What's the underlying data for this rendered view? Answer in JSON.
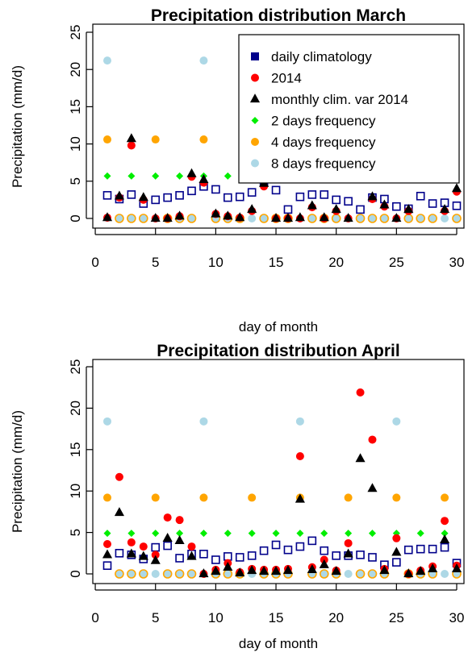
{
  "chart_data": [
    {
      "type": "scatter",
      "title": "Precipitation distribution March",
      "xlabel": "day of month",
      "ylabel": "Precipitation (mm/d)",
      "xlim": [
        1,
        30
      ],
      "ylim": [
        0,
        25
      ],
      "xticks": [
        0,
        5,
        10,
        15,
        20,
        25,
        30
      ],
      "yticks": [
        0,
        5,
        10,
        15,
        20,
        25
      ],
      "grid": false,
      "legend_position": "top-right",
      "series": [
        {
          "name": "daily climatology",
          "marker": "square",
          "color": "#00008b",
          "x": [
            1,
            2,
            3,
            4,
            5,
            6,
            7,
            8,
            9,
            10,
            11,
            12,
            13,
            14,
            15,
            16,
            17,
            18,
            19,
            20,
            21,
            22,
            23,
            24,
            25,
            26,
            27,
            28,
            29,
            30
          ],
          "y": [
            3.1,
            2.6,
            3.2,
            2.0,
            2.5,
            2.8,
            3.1,
            3.7,
            4.3,
            3.9,
            2.8,
            2.9,
            3.5,
            4.8,
            3.8,
            1.2,
            2.9,
            3.2,
            3.2,
            2.5,
            2.3,
            1.2,
            2.8,
            2.6,
            1.6,
            1.3,
            3.0,
            2.0,
            2.1,
            1.7
          ]
        },
        {
          "name": "2014",
          "marker": "circle",
          "color": "#ff0000",
          "x": [
            1,
            2,
            3,
            4,
            5,
            6,
            7,
            8,
            9,
            10,
            11,
            12,
            13,
            14,
            15,
            16,
            17,
            18,
            19,
            20,
            21,
            22,
            23,
            24,
            25,
            26,
            27,
            28,
            29,
            30
          ],
          "y": [
            0.1,
            2.8,
            9.8,
            2.5,
            0.0,
            0.0,
            0.3,
            5.6,
            4.8,
            0.6,
            0.3,
            0.1,
            1.0,
            4.3,
            0.0,
            0.0,
            0.0,
            1.5,
            0.0,
            1.0,
            0.0,
            6.2,
            2.6,
            1.6,
            0.0,
            1.0,
            5.3,
            6.6,
            1.0,
            3.6
          ]
        },
        {
          "name": "monthly clim. var 2014",
          "marker": "triangle",
          "color": "#000000",
          "x": [
            1,
            2,
            3,
            4,
            5,
            6,
            7,
            8,
            9,
            10,
            11,
            12,
            13,
            14,
            15,
            16,
            17,
            18,
            19,
            20,
            21,
            22,
            23,
            24,
            25,
            26,
            27,
            28,
            29,
            30
          ],
          "y": [
            0.1,
            3.0,
            10.7,
            2.8,
            0.0,
            0.0,
            0.3,
            6.0,
            5.2,
            0.6,
            0.3,
            0.1,
            1.2,
            4.7,
            0.0,
            0.0,
            0.1,
            1.7,
            0.1,
            1.2,
            0.0,
            6.7,
            2.9,
            1.8,
            0.0,
            1.2,
            5.8,
            7.3,
            1.2,
            4.0
          ]
        },
        {
          "name": "2 days frequency",
          "marker": "diamond",
          "color": "#00ee00",
          "x": [
            1,
            3,
            5,
            7,
            9,
            11,
            13,
            15,
            17,
            19,
            21,
            23,
            25,
            27,
            29
          ],
          "y": [
            5.7,
            5.7,
            5.7,
            5.7,
            5.7,
            5.7,
            5.7,
            5.7,
            5.7,
            5.7,
            5.7,
            5.7,
            5.7,
            5.7,
            5.7
          ]
        },
        {
          "name": "4 days frequency",
          "marker": "circle",
          "color": "#ffa500",
          "x": [
            1,
            2,
            3,
            4,
            5,
            6,
            7,
            8,
            9,
            10,
            11,
            12,
            13,
            14,
            15,
            16,
            17,
            18,
            19,
            20,
            21,
            22,
            23,
            24,
            25,
            26,
            27,
            28,
            29,
            30
          ],
          "y": [
            10.6,
            0,
            0,
            0,
            10.6,
            0,
            0,
            0,
            10.6,
            0,
            0,
            0,
            10.6,
            0,
            0,
            0,
            10.6,
            0,
            0,
            0,
            10.6,
            0,
            0,
            0,
            10.6,
            0,
            0,
            0,
            10.6,
            0
          ]
        },
        {
          "name": "8 days frequency",
          "marker": "circle",
          "color": "#add8e6",
          "x": [
            1,
            3,
            5,
            7,
            9,
            11,
            13,
            15,
            17,
            19,
            21,
            23,
            25,
            27,
            29
          ],
          "y": [
            21.2,
            0,
            0,
            0,
            21.2,
            0,
            0,
            0,
            21.2,
            0,
            0,
            0,
            21.2,
            0,
            0
          ]
        }
      ],
      "legend": [
        "daily climatology",
        "2014",
        "monthly clim. var 2014",
        "2 days frequency",
        "4 days frequency",
        "8 days frequency"
      ]
    },
    {
      "type": "scatter",
      "title": "Precipitation distribution April",
      "xlabel": "day of month",
      "ylabel": "Precipitation (mm/d)",
      "xlim": [
        1,
        30
      ],
      "ylim": [
        0,
        25
      ],
      "xticks": [
        0,
        5,
        10,
        15,
        20,
        25,
        30
      ],
      "yticks": [
        0,
        5,
        10,
        15,
        20,
        25
      ],
      "grid": false,
      "legend_position": "none",
      "series": [
        {
          "name": "daily climatology",
          "marker": "square",
          "color": "#00008b",
          "x": [
            1,
            2,
            3,
            4,
            5,
            6,
            7,
            8,
            9,
            10,
            11,
            12,
            13,
            14,
            15,
            16,
            17,
            18,
            19,
            20,
            21,
            22,
            23,
            24,
            25,
            26,
            27,
            28,
            29,
            30
          ],
          "y": [
            1.0,
            2.5,
            2.3,
            1.8,
            3.2,
            3.4,
            1.9,
            2.4,
            2.4,
            1.7,
            2.1,
            2.0,
            2.2,
            2.8,
            3.5,
            2.9,
            3.3,
            4.0,
            2.8,
            2.2,
            2.2,
            2.3,
            2.0,
            1.1,
            1.4,
            2.9,
            3.0,
            3.0,
            3.2,
            1.3
          ]
        },
        {
          "name": "2014",
          "marker": "circle",
          "color": "#ff0000",
          "x": [
            1,
            2,
            3,
            4,
            5,
            6,
            7,
            8,
            9,
            10,
            11,
            12,
            13,
            14,
            15,
            16,
            17,
            18,
            19,
            20,
            21,
            22,
            23,
            24,
            25,
            26,
            27,
            28,
            29,
            30
          ],
          "y": [
            3.6,
            11.7,
            3.8,
            3.3,
            2.3,
            6.8,
            6.5,
            3.3,
            0.0,
            0.5,
            1.3,
            0.2,
            0.6,
            0.5,
            0.5,
            0.6,
            14.2,
            0.8,
            1.7,
            0.4,
            3.7,
            21.9,
            16.2,
            0.6,
            4.3,
            0.0,
            0.4,
            0.9,
            6.4,
            1.0
          ]
        },
        {
          "name": "monthly clim. var 2014",
          "marker": "triangle",
          "color": "#000000",
          "x": [
            1,
            2,
            3,
            4,
            5,
            6,
            7,
            8,
            9,
            10,
            11,
            12,
            13,
            14,
            15,
            16,
            17,
            18,
            19,
            20,
            21,
            22,
            23,
            24,
            25,
            26,
            27,
            28,
            29,
            30
          ],
          "y": [
            2.3,
            7.4,
            2.4,
            2.1,
            1.6,
            4.3,
            4.0,
            2.1,
            0.0,
            0.3,
            0.8,
            0.1,
            0.4,
            0.3,
            0.3,
            0.4,
            9.0,
            0.5,
            1.1,
            0.3,
            2.4,
            13.9,
            10.3,
            0.4,
            2.6,
            0.0,
            0.3,
            0.6,
            4.1,
            0.6
          ]
        },
        {
          "name": "2 days frequency",
          "marker": "diamond",
          "color": "#00ee00",
          "x": [
            1,
            3,
            5,
            7,
            9,
            11,
            13,
            15,
            17,
            19,
            21,
            23,
            25,
            27,
            29
          ],
          "y": [
            4.9,
            4.9,
            4.9,
            4.9,
            4.9,
            4.9,
            4.9,
            4.9,
            4.9,
            4.9,
            4.9,
            4.9,
            4.9,
            4.9,
            4.9
          ]
        },
        {
          "name": "4 days frequency",
          "marker": "circle",
          "color": "#ffa500",
          "x": [
            1,
            2,
            3,
            4,
            5,
            6,
            7,
            8,
            9,
            10,
            11,
            12,
            13,
            14,
            15,
            16,
            17,
            18,
            19,
            20,
            21,
            22,
            23,
            24,
            25,
            26,
            27,
            28,
            29,
            30
          ],
          "y": [
            9.2,
            0,
            0,
            0,
            9.2,
            0,
            0,
            0,
            9.2,
            0,
            0,
            0,
            9.2,
            0,
            0,
            0,
            9.2,
            0,
            0,
            0,
            9.2,
            0,
            0,
            0,
            9.2,
            0,
            0,
            0,
            9.2,
            0
          ]
        },
        {
          "name": "8 days frequency",
          "marker": "circle",
          "color": "#add8e6",
          "x": [
            1,
            3,
            5,
            7,
            9,
            11,
            13,
            15,
            17,
            19,
            21,
            23,
            25,
            27,
            29
          ],
          "y": [
            18.4,
            0,
            0,
            0,
            18.4,
            0,
            0,
            0,
            18.4,
            0,
            0,
            0,
            18.4,
            0,
            0
          ]
        }
      ],
      "legend": []
    }
  ]
}
